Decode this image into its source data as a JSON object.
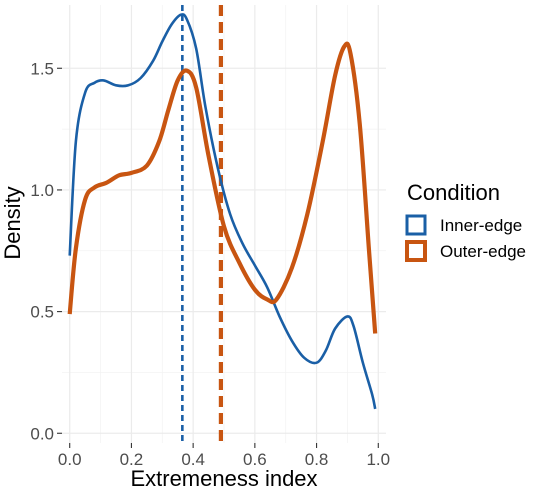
{
  "chart_data": {
    "type": "line",
    "subtype": "density",
    "title": "",
    "xlabel": "Extremeness index",
    "ylabel": "Density",
    "xlim": [
      -0.025,
      1.025
    ],
    "ylim": [
      -0.04,
      1.76
    ],
    "x_ticks": [
      0.0,
      0.2,
      0.4,
      0.6,
      0.8,
      1.0
    ],
    "x_tick_labels": [
      "0.0",
      "0.2",
      "0.4",
      "0.6",
      "0.8",
      "1.0"
    ],
    "y_ticks": [
      0.0,
      0.5,
      1.0,
      1.5
    ],
    "y_tick_labels": [
      "0.0",
      "0.5",
      "1.0",
      "1.5"
    ],
    "grid": true,
    "legend": {
      "title": "Condition",
      "position": "right",
      "entries": [
        "Inner-edge",
        "Outer-edge"
      ]
    },
    "series": [
      {
        "name": "Inner-edge",
        "color": "#1a5fa6",
        "mean": 0.365,
        "points": [
          [
            0.0,
            0.73
          ],
          [
            0.02,
            1.2
          ],
          [
            0.05,
            1.4
          ],
          [
            0.08,
            1.44
          ],
          [
            0.11,
            1.45
          ],
          [
            0.15,
            1.43
          ],
          [
            0.19,
            1.43
          ],
          [
            0.23,
            1.46
          ],
          [
            0.27,
            1.53
          ],
          [
            0.3,
            1.61
          ],
          [
            0.33,
            1.68
          ],
          [
            0.36,
            1.72
          ],
          [
            0.38,
            1.7
          ],
          [
            0.41,
            1.58
          ],
          [
            0.44,
            1.34
          ],
          [
            0.48,
            1.09
          ],
          [
            0.52,
            0.9
          ],
          [
            0.56,
            0.78
          ],
          [
            0.6,
            0.69
          ],
          [
            0.64,
            0.6
          ],
          [
            0.68,
            0.48
          ],
          [
            0.72,
            0.38
          ],
          [
            0.76,
            0.31
          ],
          [
            0.8,
            0.29
          ],
          [
            0.83,
            0.34
          ],
          [
            0.86,
            0.43
          ],
          [
            0.9,
            0.48
          ],
          [
            0.92,
            0.44
          ],
          [
            0.95,
            0.29
          ],
          [
            0.98,
            0.16
          ],
          [
            0.99,
            0.1
          ]
        ]
      },
      {
        "name": "Outer-edge",
        "color": "#c85511",
        "mean": 0.49,
        "points": [
          [
            0.0,
            0.49
          ],
          [
            0.02,
            0.76
          ],
          [
            0.05,
            0.96
          ],
          [
            0.08,
            1.01
          ],
          [
            0.12,
            1.03
          ],
          [
            0.16,
            1.06
          ],
          [
            0.2,
            1.07
          ],
          [
            0.25,
            1.1
          ],
          [
            0.29,
            1.2
          ],
          [
            0.32,
            1.33
          ],
          [
            0.35,
            1.45
          ],
          [
            0.38,
            1.49
          ],
          [
            0.41,
            1.42
          ],
          [
            0.45,
            1.14
          ],
          [
            0.5,
            0.85
          ],
          [
            0.55,
            0.7
          ],
          [
            0.6,
            0.59
          ],
          [
            0.64,
            0.55
          ],
          [
            0.67,
            0.55
          ],
          [
            0.72,
            0.68
          ],
          [
            0.77,
            0.9
          ],
          [
            0.82,
            1.2
          ],
          [
            0.86,
            1.47
          ],
          [
            0.89,
            1.59
          ],
          [
            0.91,
            1.56
          ],
          [
            0.94,
            1.27
          ],
          [
            0.97,
            0.75
          ],
          [
            0.99,
            0.41
          ]
        ]
      }
    ]
  }
}
